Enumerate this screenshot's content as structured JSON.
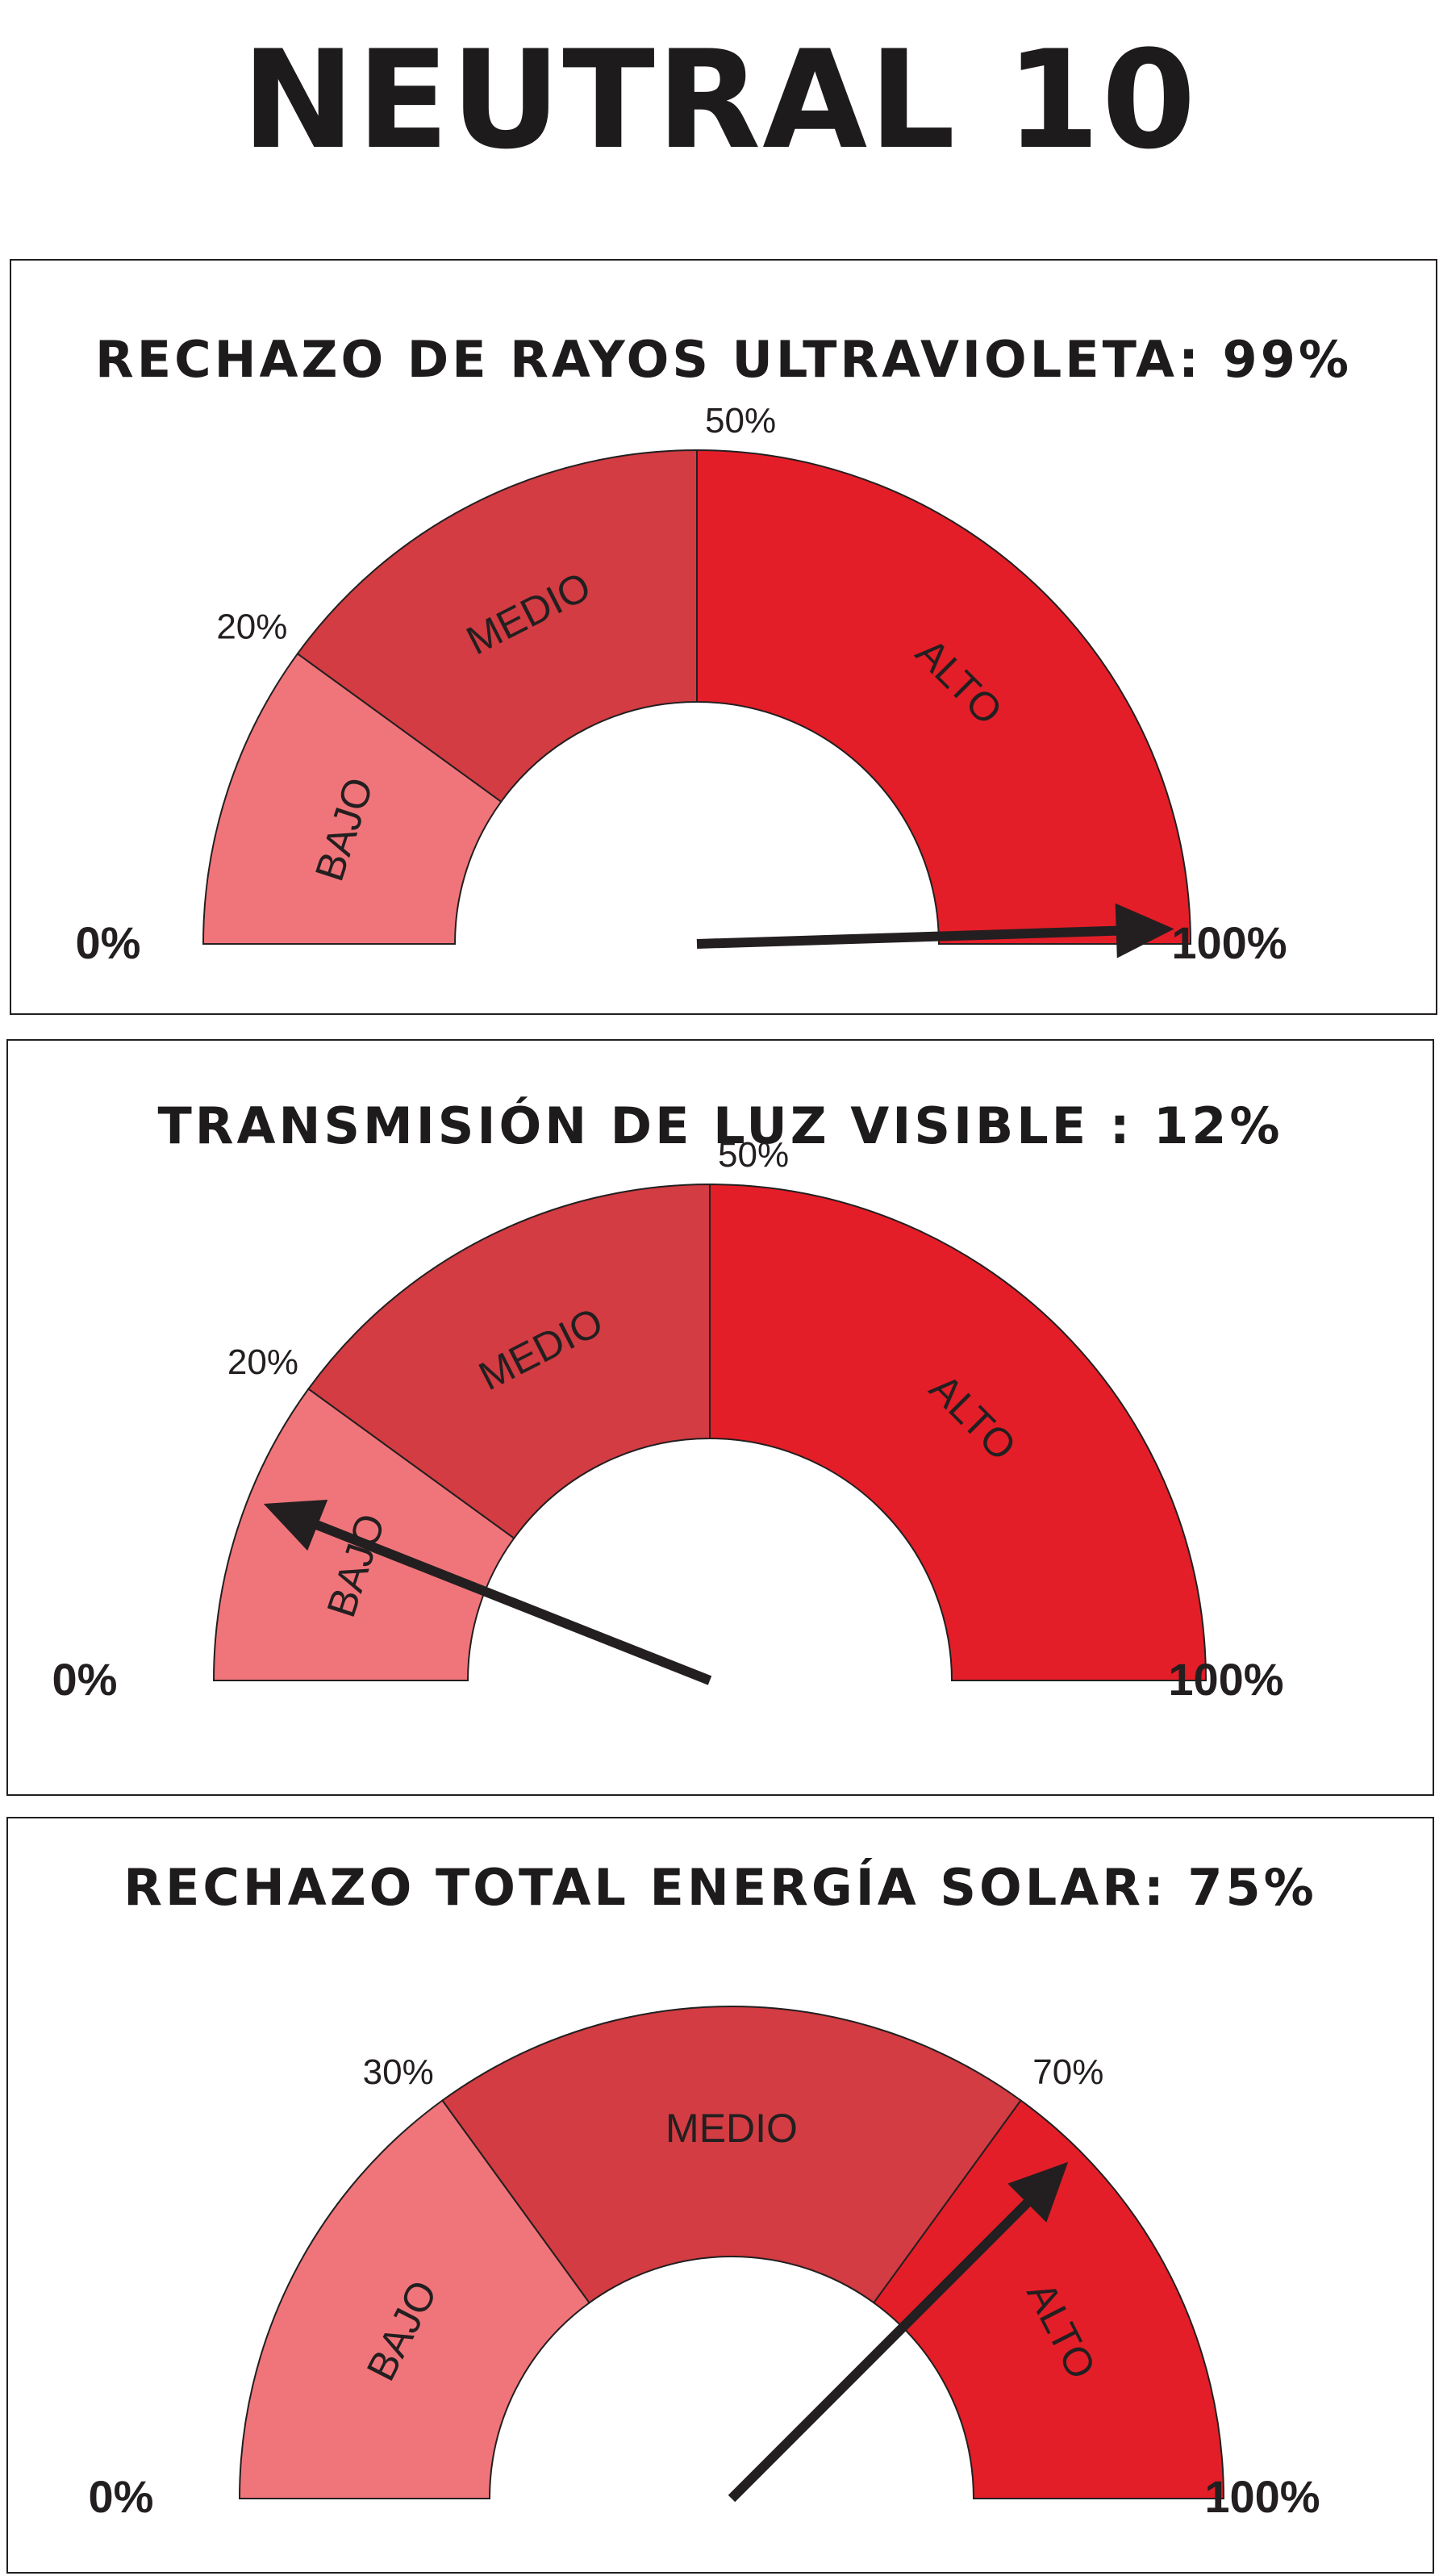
{
  "title": "NEUTRAL 10",
  "colors": {
    "bajo": "#f0757a",
    "medio": "#d23c42",
    "alto": "#e41e28",
    "needle": "#231f20",
    "outline": "#231f20"
  },
  "chart_data": [
    {
      "type": "gauge",
      "title": "RECHAZO DE RAYOS ULTRAVIOLETA: 99%",
      "value": 99,
      "min_label": "0%",
      "max_label": "100%",
      "zones": [
        {
          "label": "BAJO",
          "from": 0,
          "to": 20,
          "color": "#f0757a"
        },
        {
          "label": "MEDIO",
          "from": 20,
          "to": 50,
          "color": "#d23c42"
        },
        {
          "label": "ALTO",
          "from": 50,
          "to": 100,
          "color": "#e41e28"
        }
      ],
      "ticks": [
        {
          "value": 20,
          "label": "20%"
        },
        {
          "value": 50,
          "label": "50%"
        }
      ]
    },
    {
      "type": "gauge",
      "title": "TRANSMISIÓN DE LUZ VISIBLE : 12%",
      "value": 12,
      "min_label": "0%",
      "max_label": "100%",
      "zones": [
        {
          "label": "BAJO",
          "from": 0,
          "to": 20,
          "color": "#f0757a"
        },
        {
          "label": "MEDIO",
          "from": 20,
          "to": 50,
          "color": "#d23c42"
        },
        {
          "label": "ALTO",
          "from": 50,
          "to": 100,
          "color": "#e41e28"
        }
      ],
      "ticks": [
        {
          "value": 20,
          "label": "20%"
        },
        {
          "value": 50,
          "label": "50%"
        }
      ]
    },
    {
      "type": "gauge",
      "title": "RECHAZO TOTAL ENERGÍA SOLAR: 75%",
      "value": 75,
      "min_label": "0%",
      "max_label": "100%",
      "zones": [
        {
          "label": "BAJO",
          "from": 0,
          "to": 30,
          "color": "#f0757a"
        },
        {
          "label": "MEDIO",
          "from": 30,
          "to": 70,
          "color": "#d23c42"
        },
        {
          "label": "ALTO",
          "from": 70,
          "to": 100,
          "color": "#e41e28"
        }
      ],
      "ticks": [
        {
          "value": 30,
          "label": "30%"
        },
        {
          "value": 70,
          "label": "70%"
        }
      ]
    }
  ]
}
